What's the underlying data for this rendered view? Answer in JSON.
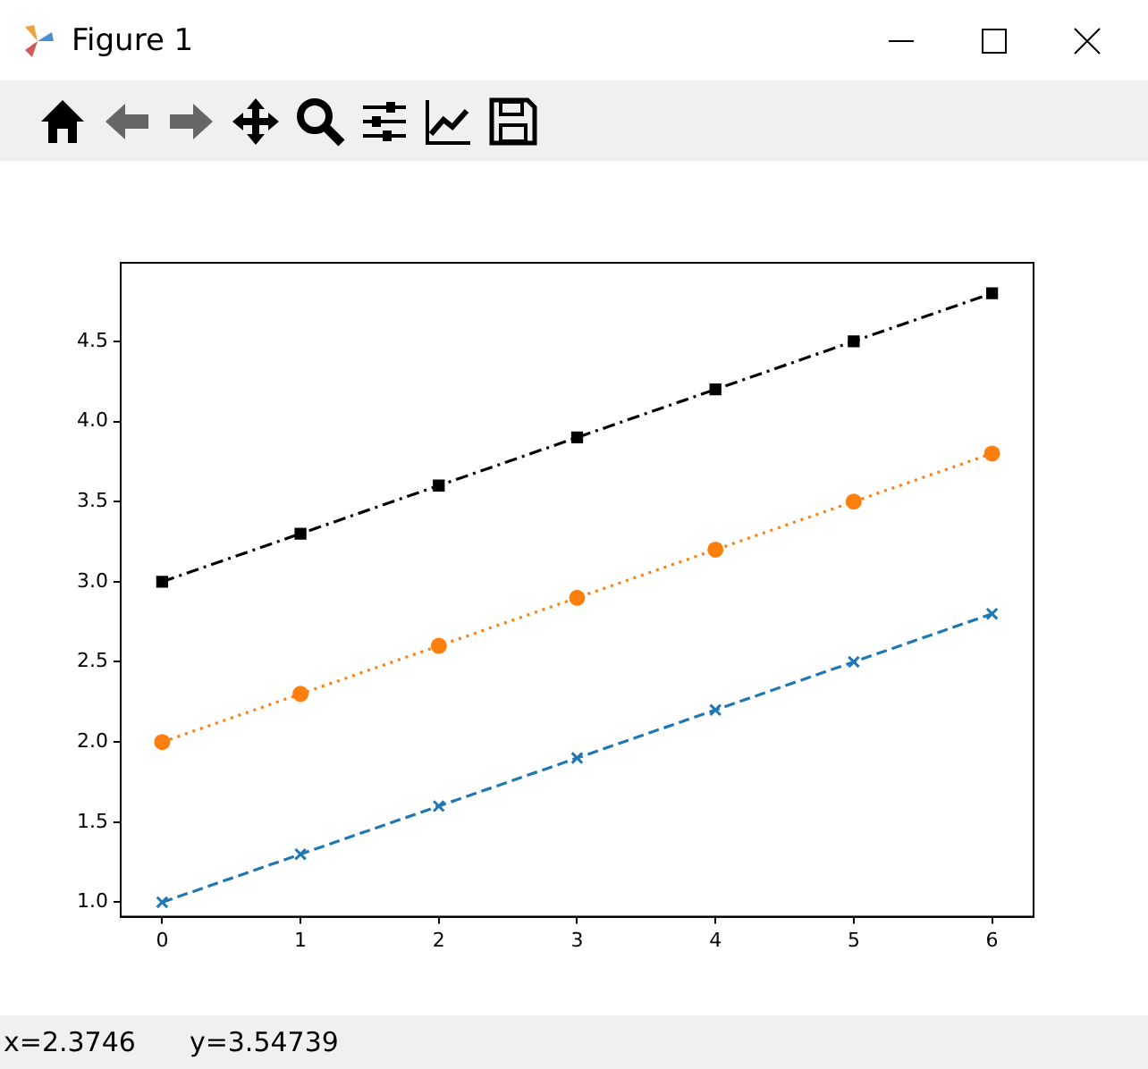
{
  "chart_data": {
    "type": "line",
    "title": "Figure 1",
    "annotations": [
      "x=2.3746",
      "y=3.54739"
    ],
    "x": [
      0,
      1,
      2,
      3,
      4,
      5,
      6
    ],
    "series": [
      {
        "color": "#1f77b4",
        "values": [
          1.0,
          1.3,
          1.6,
          1.9,
          2.2,
          2.5,
          2.8
        ],
        "marker": "cross",
        "line_style": "dashed"
      },
      {
        "color": "#ff7f0e",
        "values": [
          2.0,
          2.3,
          2.6,
          2.9,
          3.2,
          3.5,
          3.8
        ],
        "marker": "circle",
        "line_style": "dotted"
      },
      {
        "color": "#000000",
        "values": [
          3.0,
          3.3,
          3.6,
          3.9,
          4.2,
          4.5,
          4.8
        ],
        "marker": "square",
        "line_style": "dashdot"
      }
    ],
    "xlim": [
      -0.3,
      6.3
    ],
    "ylim": [
      0.91,
      4.99
    ],
    "xticks": [
      0,
      1,
      2,
      3,
      4,
      5,
      6
    ],
    "yticks": [
      {
        "value": 1,
        "label": "1.0"
      },
      {
        "value": 1.5,
        "label": "1.5"
      },
      {
        "value": 2,
        "label": "2.0"
      },
      {
        "value": 2.5,
        "label": "2.5"
      },
      {
        "value": 3,
        "label": "3.0"
      },
      {
        "value": 3.5,
        "label": "3.5"
      },
      {
        "value": 4,
        "label": "4.0"
      },
      {
        "value": 4.5,
        "label": "4.5"
      }
    ],
    "grid": false,
    "legend": false
  }
}
